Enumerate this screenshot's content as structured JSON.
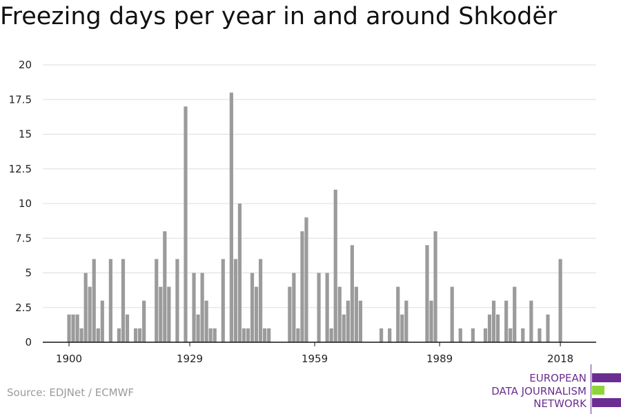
{
  "title": "Freezing days per year in and around Shkodër",
  "source": "Source: EDJNet / ECMWF",
  "logo": {
    "lines": [
      "EUROPEAN",
      "DATA JOURNALISM",
      "NETWORK"
    ],
    "colors": {
      "purple": "#6b2d91",
      "green": "#8fd43a"
    }
  },
  "colors": {
    "bar": "#9b9b9b",
    "grid": "#dddddd",
    "axis": "#111111"
  },
  "chart_data": {
    "type": "bar",
    "title": "Freezing days per year in and around Shkodër",
    "xlabel": "",
    "ylabel": "",
    "ylim": [
      0,
      20
    ],
    "yticks": [
      0,
      2.5,
      5,
      7.5,
      10,
      12.5,
      15,
      17.5,
      20
    ],
    "ytick_labels": [
      "0",
      "2.5",
      "5",
      "7.5",
      "10",
      "12.5",
      "15",
      "17.5",
      "20"
    ],
    "xticks": [
      1900,
      1929,
      1959,
      1989,
      2018
    ],
    "grid": true,
    "x": [
      1900,
      1901,
      1902,
      1903,
      1904,
      1905,
      1906,
      1907,
      1908,
      1909,
      1910,
      1911,
      1912,
      1913,
      1914,
      1915,
      1916,
      1917,
      1918,
      1919,
      1920,
      1921,
      1922,
      1923,
      1924,
      1925,
      1926,
      1927,
      1928,
      1929,
      1930,
      1931,
      1932,
      1933,
      1934,
      1935,
      1936,
      1937,
      1938,
      1939,
      1940,
      1941,
      1942,
      1943,
      1944,
      1945,
      1946,
      1947,
      1948,
      1949,
      1950,
      1951,
      1952,
      1953,
      1954,
      1955,
      1956,
      1957,
      1958,
      1959,
      1960,
      1961,
      1962,
      1963,
      1964,
      1965,
      1966,
      1967,
      1968,
      1969,
      1970,
      1971,
      1972,
      1973,
      1974,
      1975,
      1976,
      1977,
      1978,
      1979,
      1980,
      1981,
      1982,
      1983,
      1984,
      1985,
      1986,
      1987,
      1988,
      1989,
      1990,
      1991,
      1992,
      1993,
      1994,
      1995,
      1996,
      1997,
      1998,
      1999,
      2000,
      2001,
      2002,
      2003,
      2004,
      2005,
      2006,
      2007,
      2008,
      2009,
      2010,
      2011,
      2012,
      2013,
      2014,
      2015,
      2016,
      2017,
      2018,
      2019,
      2020
    ],
    "values": [
      2,
      2,
      2,
      1,
      5,
      4,
      6,
      1,
      3,
      0,
      6,
      0,
      1,
      6,
      2,
      0,
      1,
      1,
      3,
      0,
      0,
      6,
      4,
      8,
      4,
      0,
      6,
      0,
      17,
      0,
      5,
      2,
      5,
      3,
      1,
      1,
      0,
      6,
      0,
      18,
      6,
      10,
      1,
      1,
      5,
      4,
      6,
      1,
      1,
      0,
      0,
      0,
      0,
      4,
      5,
      1,
      8,
      9,
      0,
      0,
      5,
      0,
      5,
      1,
      11,
      4,
      2,
      3,
      7,
      4,
      3,
      0,
      0,
      0,
      0,
      1,
      0,
      1,
      0,
      4,
      2,
      3,
      0,
      0,
      0,
      0,
      7,
      3,
      8,
      0,
      0,
      0,
      4,
      0,
      1,
      0,
      0,
      1,
      0,
      0,
      1,
      2,
      3,
      2,
      0,
      3,
      1,
      4,
      0,
      1,
      0,
      3,
      0,
      1,
      0,
      2,
      0,
      0,
      6,
      0,
      0
    ]
  }
}
